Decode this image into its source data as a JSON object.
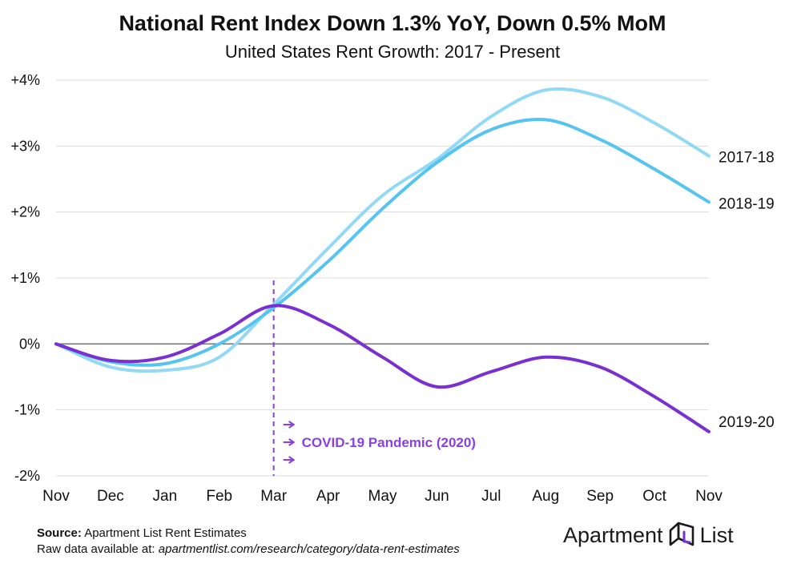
{
  "title": "National Rent Index Down 1.3% YoY, Down 0.5% MoM",
  "subtitle": "United States Rent Growth: 2017 - Present",
  "chart_data": {
    "type": "line",
    "x": [
      "Nov",
      "Dec",
      "Jan",
      "Feb",
      "Mar",
      "Apr",
      "May",
      "Jun",
      "Jul",
      "Aug",
      "Sep",
      "Oct",
      "Nov"
    ],
    "yticks": [
      "+4%",
      "+3%",
      "+2%",
      "+1%",
      "0%",
      "-1%",
      "-2%"
    ],
    "ylim": [
      -2,
      4
    ],
    "grid": true,
    "series": [
      {
        "name": "2017-18",
        "color": "#92d9f5",
        "values": [
          0,
          -0.35,
          -0.4,
          -0.2,
          0.6,
          1.45,
          2.25,
          2.8,
          3.45,
          3.85,
          3.75,
          3.35,
          2.85
        ]
      },
      {
        "name": "2018-19",
        "color": "#55c4f0",
        "values": [
          0,
          -0.27,
          -0.3,
          0.0,
          0.55,
          1.25,
          2.05,
          2.75,
          3.25,
          3.4,
          3.1,
          2.65,
          2.15
        ]
      },
      {
        "name": "2019-20",
        "color": "#7a2fd1",
        "values": [
          0,
          -0.25,
          -0.2,
          0.15,
          0.58,
          0.3,
          -0.2,
          -0.65,
          -0.42,
          -0.2,
          -0.35,
          -0.8,
          -1.33
        ]
      }
    ],
    "annotation": {
      "x": "Mar",
      "label": "COVID-19 Pandemic (2020)",
      "color": "#8a3fe0"
    }
  },
  "footer": {
    "source_label": "Source:",
    "source_text": "Apartment List Rent Estimates",
    "raw_label": "Raw data available at:",
    "raw_url": "apartmentlist.com/research/category/data-rent-estimates"
  },
  "logo": {
    "word1": "Apartment",
    "word2": "List",
    "icon": "apartment-list-logo-icon"
  }
}
